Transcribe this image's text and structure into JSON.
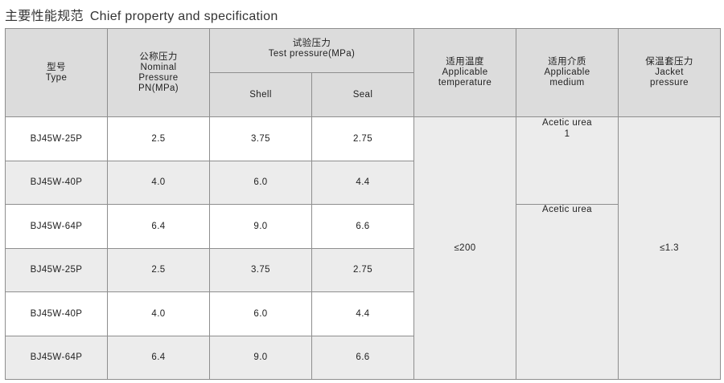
{
  "title": {
    "zh": "主要性能规范",
    "en": "Chief property and specification"
  },
  "headers": {
    "type": {
      "zh": "型号",
      "en": "Type"
    },
    "nominal": {
      "zh": "公称压力",
      "en1": "Nominal",
      "en2": "Pressure",
      "en3": "PN(MPa)"
    },
    "test": {
      "zh": "试验压力",
      "en": "Test pressure(MPa)"
    },
    "shell": "Shell",
    "seal": "Seal",
    "temperature": {
      "zh": "适用温度",
      "en1": "Applicable",
      "en2": "temperature"
    },
    "medium": {
      "zh": "适用介质",
      "en1": "Applicable",
      "en2": "medium"
    },
    "jacket": {
      "zh": "保温套压力",
      "en1": "Jacket",
      "en2": "pressure"
    }
  },
  "rows": [
    {
      "type": "BJ45W-25P",
      "pn": "2.5",
      "shell": "3.75",
      "seal": "2.75"
    },
    {
      "type": "BJ45W-40P",
      "pn": "4.0",
      "shell": "6.0",
      "seal": "4.4"
    },
    {
      "type": "BJ45W-64P",
      "pn": "6.4",
      "shell": "9.0",
      "seal": "6.6"
    },
    {
      "type": "BJ45W-25P",
      "pn": "2.5",
      "shell": "3.75",
      "seal": "2.75"
    },
    {
      "type": "BJ45W-40P",
      "pn": "4.0",
      "shell": "6.0",
      "seal": "4.4"
    },
    {
      "type": "BJ45W-64P",
      "pn": "6.4",
      "shell": "9.0",
      "seal": "6.6"
    }
  ],
  "merged": {
    "temperature": "≤200",
    "medium_a_line1": "Acetic urea",
    "medium_a_line2": "1",
    "medium_b": "Acetic urea",
    "jacket": "≤1.3"
  }
}
